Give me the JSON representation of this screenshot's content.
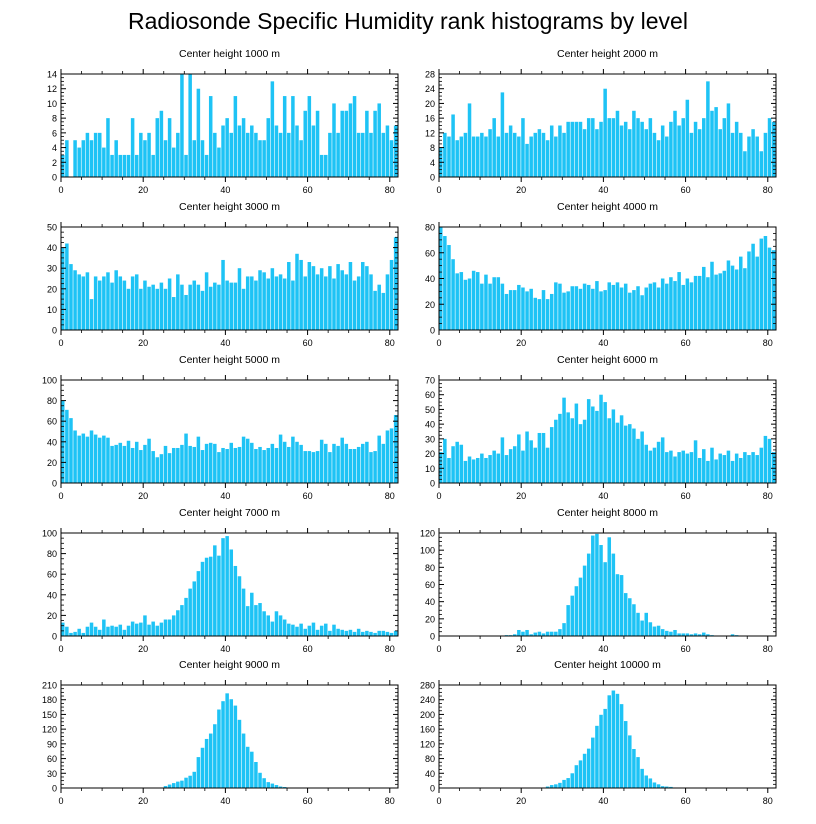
{
  "title": "Radiosonde Specific Humidity rank histograms by level",
  "bar_color": "#1ec3f5",
  "chart_data": [
    {
      "type": "bar",
      "title": "Center height 1000 m",
      "xlim": [
        0,
        82
      ],
      "ylim": [
        0,
        14
      ],
      "xticks": [
        0,
        20,
        40,
        60,
        80
      ],
      "yticks": [
        0,
        2,
        4,
        6,
        8,
        10,
        12,
        14
      ],
      "values": [
        3,
        5,
        0,
        5,
        4,
        5,
        6,
        5,
        6,
        6,
        4,
        8,
        3,
        5,
        3,
        3,
        3,
        8,
        3,
        6,
        5,
        6,
        3,
        8,
        9,
        5,
        8,
        4,
        6,
        14,
        3,
        14,
        5,
        12,
        5,
        3,
        11,
        6,
        4,
        7,
        8,
        6,
        11,
        7,
        8,
        6,
        7,
        6,
        5,
        5,
        8,
        13,
        7,
        6,
        11,
        6,
        11,
        7,
        5,
        9,
        11,
        7,
        9,
        3,
        3,
        6,
        10,
        6,
        9,
        9,
        10,
        11,
        6,
        6,
        9,
        6,
        9,
        10,
        6,
        7,
        5,
        7
      ]
    },
    {
      "type": "bar",
      "title": "Center height 2000 m",
      "xlim": [
        0,
        82
      ],
      "ylim": [
        0,
        28
      ],
      "xticks": [
        0,
        20,
        40,
        60,
        80
      ],
      "yticks": [
        0,
        4,
        8,
        12,
        16,
        20,
        24,
        28
      ],
      "values": [
        8,
        12,
        11,
        17,
        10,
        11,
        12,
        20,
        11,
        11,
        12,
        11,
        13,
        16,
        11,
        23,
        12,
        14,
        12,
        11,
        16,
        9,
        11,
        12,
        13,
        12,
        10,
        14,
        11,
        14,
        12,
        15,
        15,
        15,
        15,
        13,
        16,
        16,
        13,
        15,
        24,
        16,
        16,
        18,
        14,
        15,
        13,
        18,
        16,
        15,
        13,
        16,
        12,
        10,
        14,
        11,
        15,
        18,
        14,
        16,
        21,
        12,
        15,
        13,
        16,
        26,
        18,
        19,
        13,
        16,
        20,
        12,
        15,
        12,
        7,
        11,
        13,
        11,
        7,
        12,
        16,
        15
      ]
    },
    {
      "type": "bar",
      "title": "Center height 3000 m",
      "xlim": [
        0,
        82
      ],
      "ylim": [
        0,
        50
      ],
      "xticks": [
        0,
        20,
        40,
        60,
        80
      ],
      "yticks": [
        0,
        10,
        20,
        30,
        40,
        50
      ],
      "values": [
        40,
        42,
        32,
        29,
        27,
        26,
        28,
        15,
        26,
        24,
        26,
        28,
        23,
        29,
        26,
        24,
        20,
        26,
        27,
        20,
        24,
        21,
        22,
        20,
        23,
        20,
        25,
        16,
        27,
        22,
        17,
        22,
        24,
        22,
        19,
        28,
        21,
        23,
        22,
        34,
        24,
        23,
        23,
        30,
        20,
        26,
        26,
        24,
        29,
        28,
        25,
        30,
        26,
        27,
        25,
        33,
        24,
        37,
        34,
        26,
        33,
        31,
        27,
        30,
        26,
        31,
        25,
        32,
        29,
        27,
        33,
        24,
        26,
        33,
        31,
        27,
        19,
        22,
        18,
        27,
        34,
        45
      ]
    },
    {
      "type": "bar",
      "title": "Center height 4000 m",
      "xlim": [
        0,
        82
      ],
      "ylim": [
        0,
        80
      ],
      "xticks": [
        0,
        20,
        40,
        60,
        80
      ],
      "yticks": [
        0,
        20,
        40,
        60,
        80
      ],
      "values": [
        80,
        73,
        66,
        55,
        44,
        45,
        39,
        40,
        46,
        45,
        36,
        43,
        36,
        41,
        41,
        36,
        28,
        31,
        31,
        35,
        33,
        30,
        32,
        25,
        24,
        31,
        24,
        28,
        37,
        36,
        29,
        30,
        34,
        34,
        32,
        36,
        35,
        32,
        38,
        30,
        31,
        37,
        35,
        37,
        33,
        36,
        29,
        31,
        34,
        27,
        33,
        36,
        37,
        33,
        40,
        36,
        41,
        38,
        45,
        35,
        40,
        37,
        42,
        42,
        49,
        41,
        53,
        43,
        44,
        46,
        54,
        50,
        47,
        57,
        48,
        61,
        67,
        57,
        71,
        73,
        64,
        62
      ]
    },
    {
      "type": "bar",
      "title": "Center height 5000 m",
      "xlim": [
        0,
        82
      ],
      "ylim": [
        0,
        100
      ],
      "xticks": [
        0,
        20,
        40,
        60,
        80
      ],
      "yticks": [
        0,
        20,
        40,
        60,
        80,
        100
      ],
      "values": [
        80,
        71,
        63,
        51,
        46,
        48,
        45,
        51,
        47,
        44,
        46,
        44,
        36,
        37,
        39,
        36,
        41,
        34,
        40,
        32,
        37,
        43,
        31,
        25,
        28,
        36,
        29,
        34,
        34,
        37,
        48,
        36,
        35,
        45,
        32,
        38,
        39,
        38,
        30,
        34,
        33,
        39,
        34,
        35,
        45,
        43,
        39,
        33,
        35,
        32,
        34,
        38,
        34,
        47,
        40,
        35,
        45,
        40,
        37,
        31,
        31,
        30,
        31,
        42,
        38,
        30,
        38,
        36,
        44,
        38,
        33,
        33,
        35,
        38,
        40,
        30,
        31,
        46,
        38,
        51,
        53,
        66
      ]
    },
    {
      "type": "bar",
      "title": "Center height 6000 m",
      "xlim": [
        0,
        82
      ],
      "ylim": [
        0,
        70
      ],
      "xticks": [
        0,
        20,
        40,
        60,
        80
      ],
      "yticks": [
        0,
        10,
        20,
        30,
        40,
        50,
        60,
        70
      ],
      "values": [
        21,
        30,
        17,
        25,
        28,
        26,
        15,
        18,
        16,
        17,
        20,
        17,
        19,
        22,
        20,
        31,
        19,
        23,
        25,
        33,
        22,
        35,
        29,
        24,
        34,
        34,
        24,
        38,
        43,
        47,
        58,
        48,
        44,
        54,
        40,
        43,
        57,
        52,
        49,
        60,
        55,
        44,
        50,
        41,
        46,
        39,
        40,
        37,
        30,
        35,
        26,
        22,
        24,
        28,
        31,
        21,
        22,
        18,
        21,
        22,
        20,
        21,
        29,
        17,
        23,
        15,
        24,
        16,
        20,
        19,
        22,
        15,
        20,
        17,
        21,
        19,
        21,
        19,
        24,
        32,
        30,
        21
      ]
    },
    {
      "type": "bar",
      "title": "Center height 7000 m",
      "xlim": [
        0,
        82
      ],
      "ylim": [
        0,
        100
      ],
      "xticks": [
        0,
        20,
        40,
        60,
        80
      ],
      "yticks": [
        0,
        20,
        40,
        60,
        80,
        100
      ],
      "values": [
        13,
        9,
        3,
        4,
        7,
        3,
        9,
        13,
        9,
        6,
        16,
        9,
        10,
        9,
        11,
        6,
        10,
        14,
        12,
        13,
        20,
        11,
        14,
        10,
        13,
        16,
        16,
        20,
        25,
        30,
        37,
        46,
        53,
        63,
        72,
        76,
        77,
        88,
        78,
        95,
        97,
        84,
        68,
        58,
        46,
        29,
        42,
        30,
        32,
        24,
        20,
        14,
        24,
        20,
        16,
        12,
        11,
        9,
        12,
        7,
        10,
        13,
        6,
        10,
        12,
        5,
        11,
        7,
        6,
        5,
        6,
        4,
        7,
        4,
        5,
        4,
        3,
        5,
        5,
        4,
        3,
        5
      ]
    },
    {
      "type": "bar",
      "title": "Center height 8000 m",
      "xlim": [
        0,
        82
      ],
      "ylim": [
        0,
        120
      ],
      "xticks": [
        0,
        20,
        40,
        60,
        80
      ],
      "yticks": [
        0,
        20,
        40,
        60,
        80,
        100,
        120
      ],
      "values": [
        0,
        0,
        0,
        0,
        0,
        0,
        0,
        0,
        0,
        0,
        0,
        0,
        0,
        0,
        0,
        0,
        1,
        1,
        2,
        7,
        5,
        7,
        2,
        4,
        5,
        3,
        5,
        5,
        5,
        8,
        15,
        36,
        47,
        58,
        68,
        82,
        96,
        117,
        119,
        106,
        86,
        115,
        96,
        72,
        71,
        50,
        44,
        37,
        27,
        18,
        27,
        16,
        11,
        12,
        8,
        6,
        5,
        7,
        3,
        3,
        3,
        2,
        3,
        2,
        4,
        2,
        1,
        0,
        0,
        0,
        0,
        2,
        1,
        0,
        0,
        0,
        0,
        0,
        0,
        0,
        0,
        0
      ]
    },
    {
      "type": "bar",
      "title": "Center height 9000 m",
      "xlim": [
        0,
        82
      ],
      "ylim": [
        0,
        210
      ],
      "xticks": [
        0,
        20,
        40,
        60,
        80
      ],
      "yticks": [
        0,
        30,
        60,
        90,
        120,
        150,
        180,
        210
      ],
      "values": [
        0,
        0,
        0,
        0,
        0,
        0,
        0,
        0,
        0,
        0,
        0,
        0,
        0,
        0,
        0,
        0,
        0,
        0,
        0,
        0,
        0,
        0,
        0,
        0,
        0,
        4,
        7,
        10,
        13,
        15,
        21,
        25,
        33,
        63,
        82,
        100,
        111,
        130,
        160,
        177,
        193,
        181,
        168,
        139,
        111,
        84,
        74,
        53,
        31,
        20,
        12,
        9,
        6,
        3,
        2,
        1,
        0,
        0,
        0,
        0,
        0,
        0,
        0,
        0,
        0,
        0,
        0,
        0,
        0,
        0,
        0,
        0,
        0,
        0,
        0,
        0,
        0,
        0,
        0,
        0,
        0,
        0
      ]
    },
    {
      "type": "bar",
      "title": "Center height 10000 m",
      "xlim": [
        0,
        82
      ],
      "ylim": [
        0,
        280
      ],
      "xticks": [
        0,
        20,
        40,
        60,
        80
      ],
      "yticks": [
        0,
        40,
        80,
        120,
        160,
        200,
        240,
        280
      ],
      "values": [
        0,
        0,
        0,
        0,
        0,
        0,
        0,
        0,
        0,
        0,
        0,
        0,
        0,
        0,
        0,
        0,
        0,
        0,
        0,
        0,
        0,
        0,
        0,
        0,
        0,
        1,
        4,
        8,
        10,
        14,
        22,
        27,
        40,
        62,
        75,
        93,
        107,
        137,
        169,
        199,
        215,
        252,
        265,
        256,
        228,
        182,
        143,
        106,
        84,
        52,
        34,
        26,
        15,
        10,
        5,
        4,
        3,
        0,
        0,
        0,
        0,
        0,
        0,
        0,
        0,
        0,
        0,
        0,
        0,
        0,
        0,
        0,
        0,
        0,
        0,
        0,
        0,
        0,
        0,
        0,
        0,
        0
      ]
    }
  ]
}
